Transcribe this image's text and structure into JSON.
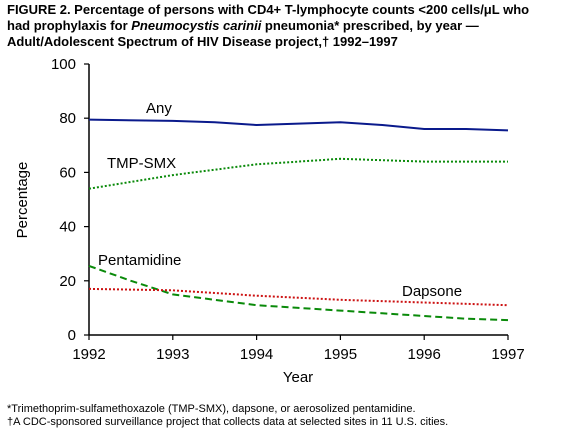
{
  "figure": {
    "title_line1": "FIGURE 2. Percentage of persons with CD4+ T-lymphocyte counts <200 cells/μL who",
    "title_line2_a": "had prophylaxis for ",
    "title_line2_b": "Pneumocystis carinii",
    "title_line2_c": " pneumonia* prescribed, by year —",
    "title_line3": "Adult/Adolescent Spectrum of HIV Disease project,† 1992–1997"
  },
  "footnotes": {
    "note1": "*Trimethoprim-sulfamethoxazole (TMP-SMX), dapsone, or aerosolized pentamidine.",
    "note2": "†A CDC-sponsored surveillance project that collects data at selected sites in 11 U.S. cities."
  },
  "chart_data": {
    "type": "line",
    "title": "",
    "xlabel": "Year",
    "ylabel": "Percentage",
    "xlim": [
      1992,
      1997
    ],
    "ylim": [
      0,
      100
    ],
    "x_ticks": [
      1992,
      1993,
      1994,
      1995,
      1996,
      1997
    ],
    "y_ticks": [
      0,
      20,
      40,
      60,
      80,
      100
    ],
    "grid": false,
    "legend": "inline labels",
    "series": [
      {
        "name": "Any",
        "color": "#0a1a8c",
        "style": "solid",
        "points": [
          [
            1992,
            79.5
          ],
          [
            1993,
            79
          ],
          [
            1993.5,
            78.5
          ],
          [
            1994,
            77.5
          ],
          [
            1994.5,
            78
          ],
          [
            1995,
            78.5
          ],
          [
            1995.5,
            77.5
          ],
          [
            1996,
            76
          ],
          [
            1996.5,
            76
          ],
          [
            1997,
            75.5
          ]
        ]
      },
      {
        "name": "TMP-SMX",
        "color": "#0a8a0a",
        "style": "dotted",
        "points": [
          [
            1992,
            54
          ],
          [
            1992.5,
            56.5
          ],
          [
            1993,
            59
          ],
          [
            1993.5,
            61
          ],
          [
            1994,
            63
          ],
          [
            1994.5,
            64
          ],
          [
            1995,
            65
          ],
          [
            1995.5,
            64.5
          ],
          [
            1996,
            64
          ],
          [
            1996.5,
            64
          ],
          [
            1997,
            64
          ]
        ]
      },
      {
        "name": "Pentamidine",
        "color": "#0a8a0a",
        "style": "dashed",
        "points": [
          [
            1992,
            25.5
          ],
          [
            1992.5,
            20
          ],
          [
            1993,
            15
          ],
          [
            1993.5,
            13
          ],
          [
            1994,
            11
          ],
          [
            1994.5,
            10
          ],
          [
            1995,
            9
          ],
          [
            1995.5,
            8
          ],
          [
            1996,
            7
          ],
          [
            1996.5,
            6
          ],
          [
            1997,
            5.5
          ]
        ]
      },
      {
        "name": "Dapsone",
        "color": "#cc1111",
        "style": "dotted",
        "points": [
          [
            1992,
            17
          ],
          [
            1993,
            16.5
          ],
          [
            1994,
            14.5
          ],
          [
            1995,
            13
          ],
          [
            1996,
            12
          ],
          [
            1997,
            11
          ]
        ]
      }
    ]
  }
}
